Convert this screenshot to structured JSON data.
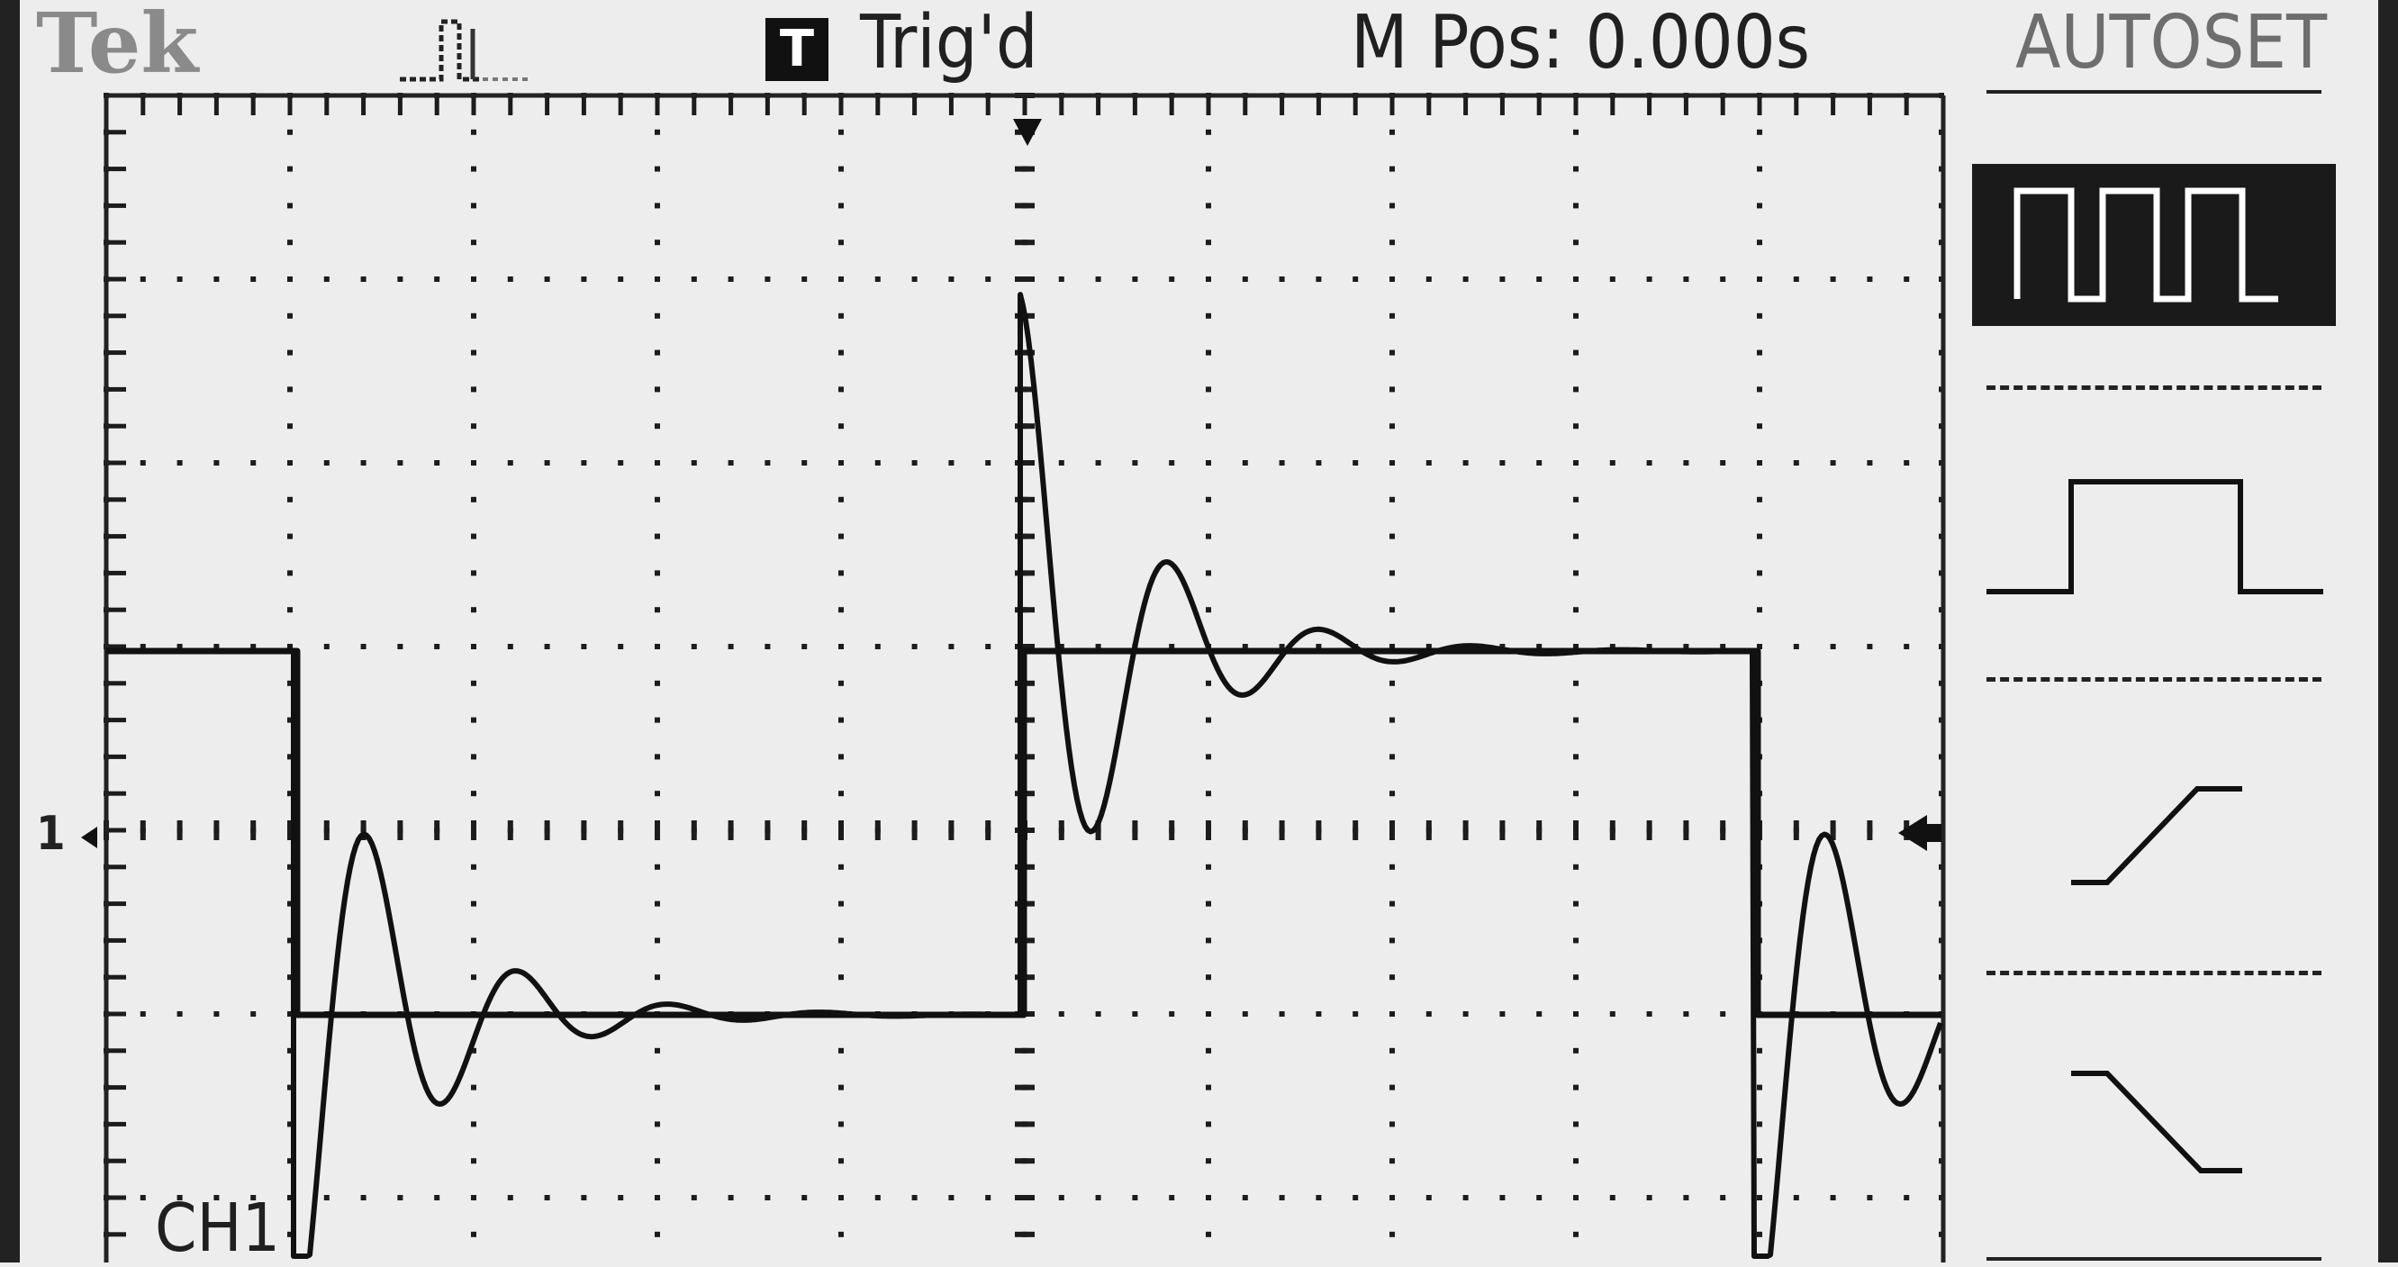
{
  "header": {
    "brand": "Tek",
    "acquire_icon": "acquire-pulse-icon",
    "trigger_badge": "T",
    "trigger_status": "Trig'd",
    "main_position": "M Pos: 0.000s"
  },
  "side_menu": {
    "title": "AUTOSET",
    "options": [
      {
        "icon": "multi-cycle-square-wave-icon",
        "selected": true
      },
      {
        "icon": "single-cycle-pulse-icon",
        "selected": false
      },
      {
        "icon": "rising-edge-icon",
        "selected": false
      },
      {
        "icon": "falling-edge-icon",
        "selected": false
      }
    ]
  },
  "graticule": {
    "channel_label": "CH1",
    "ground_marker": "1"
  },
  "colors": {
    "screen_background": "#ededed",
    "trace": "#111111",
    "selected_menu": "#1a1a1a"
  }
}
